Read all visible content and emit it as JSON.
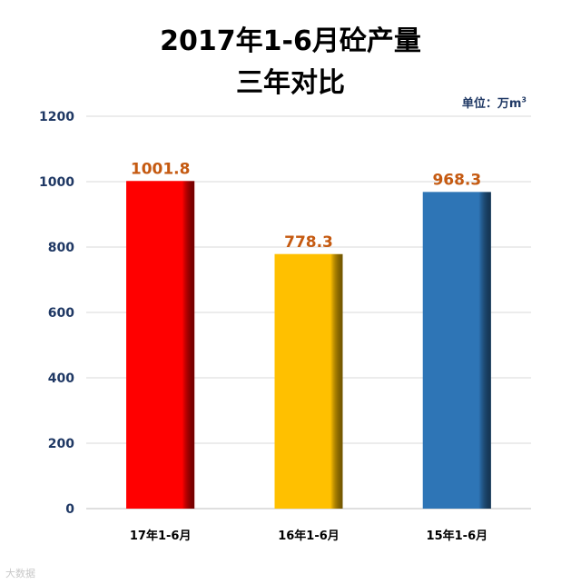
{
  "title_line1": "2017年1-6月砼产量",
  "title_line2": "三年对比",
  "unit_label": "单位：万m",
  "unit_superscript": "3",
  "watermark": "大数据",
  "chart_data": {
    "type": "bar",
    "title": "2017年1-6月砼产量 三年对比",
    "categories": [
      "17年1-6月",
      "16年1-6月",
      "15年1-6月"
    ],
    "values": [
      1001.8,
      778.3,
      968.3
    ],
    "data_labels": [
      "1001.8",
      "778.3",
      "968.3"
    ],
    "colors": [
      "#ff0000",
      "#ffc000",
      "#2e75b6"
    ],
    "ylim": [
      0,
      1200
    ],
    "yticks": [
      0,
      200,
      400,
      600,
      800,
      1000,
      1200
    ],
    "grid": true,
    "legend": "none"
  }
}
